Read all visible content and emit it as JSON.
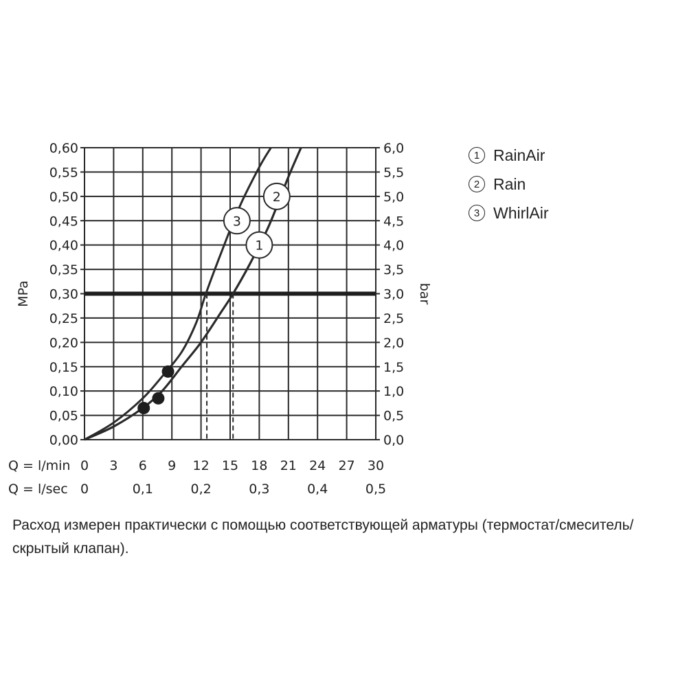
{
  "legend": [
    {
      "num": "1",
      "label": "RainAir"
    },
    {
      "num": "2",
      "label": "Rain"
    },
    {
      "num": "3",
      "label": "WhirlAir"
    }
  ],
  "note": "Расход измерен практически с помощью соответствующей арматуры (термостат/смеситель/скрытый клапан).",
  "chart_data": {
    "type": "line",
    "title": "",
    "xlabel_lmin": "Q = l/min",
    "xlabel_lsec": "Q = l/sec",
    "ylabel_left": "MPa",
    "ylabel_right": "bar",
    "xlim": [
      0,
      30
    ],
    "ylim": [
      0,
      0.6
    ],
    "x_ticks_lmin": [
      "0",
      "3",
      "6",
      "9",
      "12",
      "15",
      "18",
      "21",
      "24",
      "27",
      "30"
    ],
    "x_ticks_lsec": [
      {
        "value": 0,
        "label": "0"
      },
      {
        "value": 6,
        "label": "0,1"
      },
      {
        "value": 12,
        "label": "0,2"
      },
      {
        "value": 18,
        "label": "0,3"
      },
      {
        "value": 24,
        "label": "0,4"
      },
      {
        "value": 30,
        "label": "0,5"
      }
    ],
    "y_ticks_mpa": [
      "0,00",
      "0,05",
      "0,10",
      "0,15",
      "0,20",
      "0,25",
      "0,30",
      "0,35",
      "0,40",
      "0,45",
      "0,50",
      "0,55",
      "0,60"
    ],
    "y_ticks_bar": [
      "0,0",
      "0,5",
      "1,0",
      "1,5",
      "2,0",
      "2,5",
      "3,0",
      "3,5",
      "4,0",
      "4,5",
      "5,0",
      "5,5",
      "6,0"
    ],
    "grid": true,
    "reference_pressure": 0.3,
    "series": [
      {
        "name": "1",
        "marker_label_at": [
          18,
          0.4
        ],
        "x": [
          0,
          3,
          6,
          8,
          10,
          12,
          14,
          15.3,
          17,
          19,
          21,
          22.3
        ],
        "y": [
          0,
          0.027,
          0.065,
          0.1,
          0.15,
          0.2,
          0.26,
          0.3,
          0.36,
          0.44,
          0.54,
          0.6
        ]
      },
      {
        "name": "2",
        "marker_label_at": [
          19.8,
          0.5
        ],
        "x": [
          0,
          3,
          6,
          8,
          10,
          12,
          14,
          15.3,
          17,
          19,
          21,
          22.3
        ],
        "y": [
          0,
          0.027,
          0.065,
          0.1,
          0.15,
          0.2,
          0.26,
          0.3,
          0.36,
          0.44,
          0.54,
          0.6
        ]
      },
      {
        "name": "3",
        "marker_label_at": [
          15.7,
          0.45
        ],
        "x": [
          0,
          3,
          6,
          8,
          10,
          11.5,
          12.5,
          14,
          16,
          18,
          19.2
        ],
        "y": [
          0,
          0.035,
          0.085,
          0.13,
          0.18,
          0.24,
          0.3,
          0.38,
          0.48,
          0.56,
          0.6
        ]
      }
    ],
    "min_points": [
      {
        "x": 6.1,
        "y": 0.065
      },
      {
        "x": 7.6,
        "y": 0.085
      },
      {
        "x": 8.6,
        "y": 0.14
      }
    ],
    "drop_lines_x": [
      12.6,
      15.3
    ]
  }
}
